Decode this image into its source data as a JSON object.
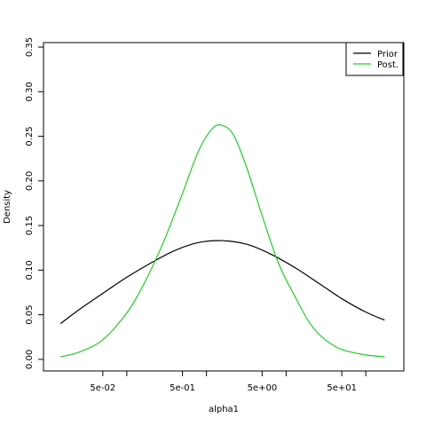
{
  "chart_data": {
    "type": "line",
    "xlabel": "alpha1",
    "ylabel": "Density",
    "x_scale": "log",
    "xlim": [
      0.009,
      300
    ],
    "ylim": [
      -0.013,
      0.355
    ],
    "x_ticks": [
      {
        "value": 0.05,
        "label": "5e-02"
      },
      {
        "value": 0.5,
        "label": "5e-01"
      },
      {
        "value": 5,
        "label": "5e+00"
      },
      {
        "value": 50,
        "label": "5e+01"
      }
    ],
    "x_minor_ticks": [
      0.1,
      1,
      10,
      100
    ],
    "y_ticks": [
      {
        "value": 0.0,
        "label": "0.00"
      },
      {
        "value": 0.05,
        "label": "0.05"
      },
      {
        "value": 0.1,
        "label": "0.10"
      },
      {
        "value": 0.15,
        "label": "0.15"
      },
      {
        "value": 0.2,
        "label": "0.20"
      },
      {
        "value": 0.25,
        "label": "0.25"
      },
      {
        "value": 0.3,
        "label": "0.30"
      },
      {
        "value": 0.35,
        "label": "0.35"
      }
    ],
    "grid": false,
    "legend_position": "top-right",
    "series": [
      {
        "name": "Prior",
        "color": "#000000",
        "x": [
          0.0147,
          0.025,
          0.05,
          0.1,
          0.2,
          0.4,
          0.8,
          1.6,
          3.2,
          6.4,
          12.8,
          25,
          50,
          100,
          172
        ],
        "y": [
          0.04,
          0.0555,
          0.074,
          0.092,
          0.108,
          0.122,
          0.131,
          0.133,
          0.129,
          0.118,
          0.103,
          0.086,
          0.068,
          0.053,
          0.044
        ]
      },
      {
        "name": "Post.",
        "color": "#22cc22",
        "x": [
          0.0147,
          0.025,
          0.05,
          0.1,
          0.15,
          0.2,
          0.3,
          0.5,
          0.8,
          1.2,
          1.6,
          2.2,
          3.2,
          5,
          8,
          12.8,
          20,
          30,
          50,
          100,
          172
        ],
        "y": [
          0.003,
          0.008,
          0.022,
          0.052,
          0.078,
          0.1,
          0.135,
          0.186,
          0.234,
          0.259,
          0.262,
          0.251,
          0.215,
          0.161,
          0.108,
          0.071,
          0.04,
          0.023,
          0.011,
          0.005,
          0.003
        ]
      }
    ]
  }
}
